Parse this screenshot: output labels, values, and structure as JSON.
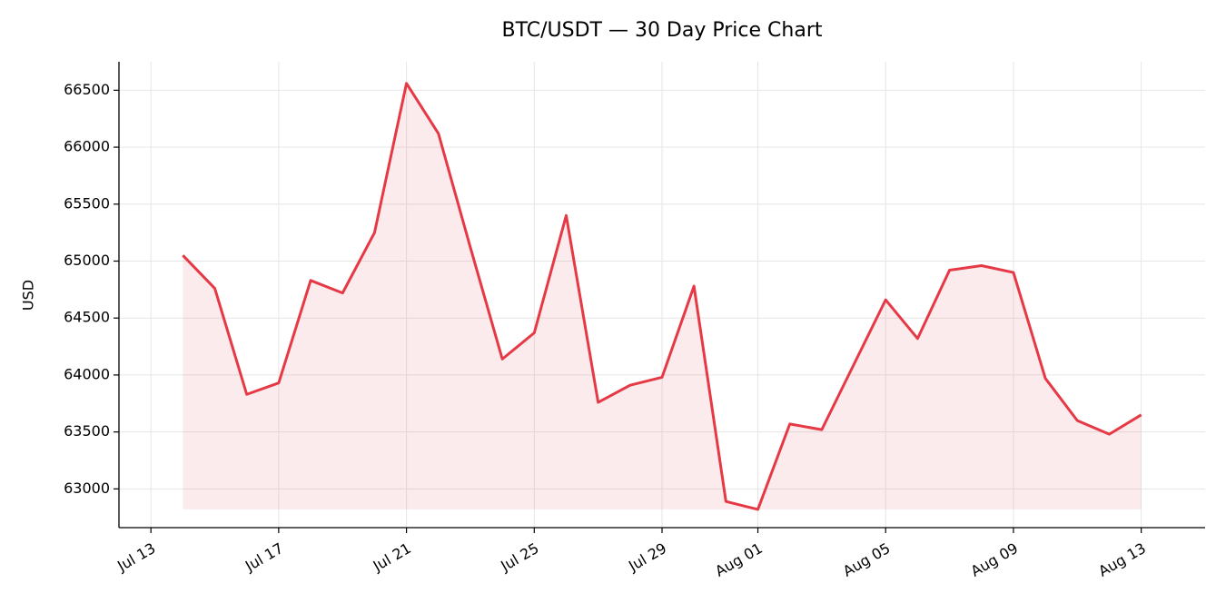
{
  "chart_data": {
    "type": "line",
    "title": "BTC/USDT — 30 Day Price Chart",
    "y_label": "USD",
    "x": [
      "Jul 14",
      "Jul 15",
      "Jul 16",
      "Jul 17",
      "Jul 18",
      "Jul 19",
      "Jul 20",
      "Jul 21",
      "Jul 22",
      "Jul 23",
      "Jul 24",
      "Jul 25",
      "Jul 26",
      "Jul 27",
      "Jul 28",
      "Jul 29",
      "Jul 30",
      "Jul 31",
      "Aug 01",
      "Aug 02",
      "Aug 03",
      "Aug 04",
      "Aug 05",
      "Aug 06",
      "Aug 07",
      "Aug 08",
      "Aug 09",
      "Aug 10",
      "Aug 11",
      "Aug 12",
      "Aug 13"
    ],
    "values": [
      65050,
      64760,
      63830,
      63930,
      64830,
      64720,
      65250,
      66560,
      66120,
      65120,
      64140,
      64370,
      65400,
      63760,
      63910,
      63980,
      64780,
      62890,
      62820,
      63570,
      63520,
      64090,
      64660,
      64320,
      64920,
      64960,
      64900,
      63970,
      63600,
      63480,
      63650
    ],
    "color": "#e63946",
    "xlim": [
      "Jul 12",
      "Aug 15"
    ],
    "xticks": [
      "Jul 13",
      "Jul 17",
      "Jul 21",
      "Jul 25",
      "Jul 29",
      "Aug 01",
      "Aug 05",
      "Aug 09",
      "Aug 13"
    ],
    "ylim": [
      62660,
      66750
    ],
    "yticks": [
      63000,
      63500,
      64000,
      64500,
      65000,
      65500,
      66000,
      66500
    ],
    "grid": true
  }
}
